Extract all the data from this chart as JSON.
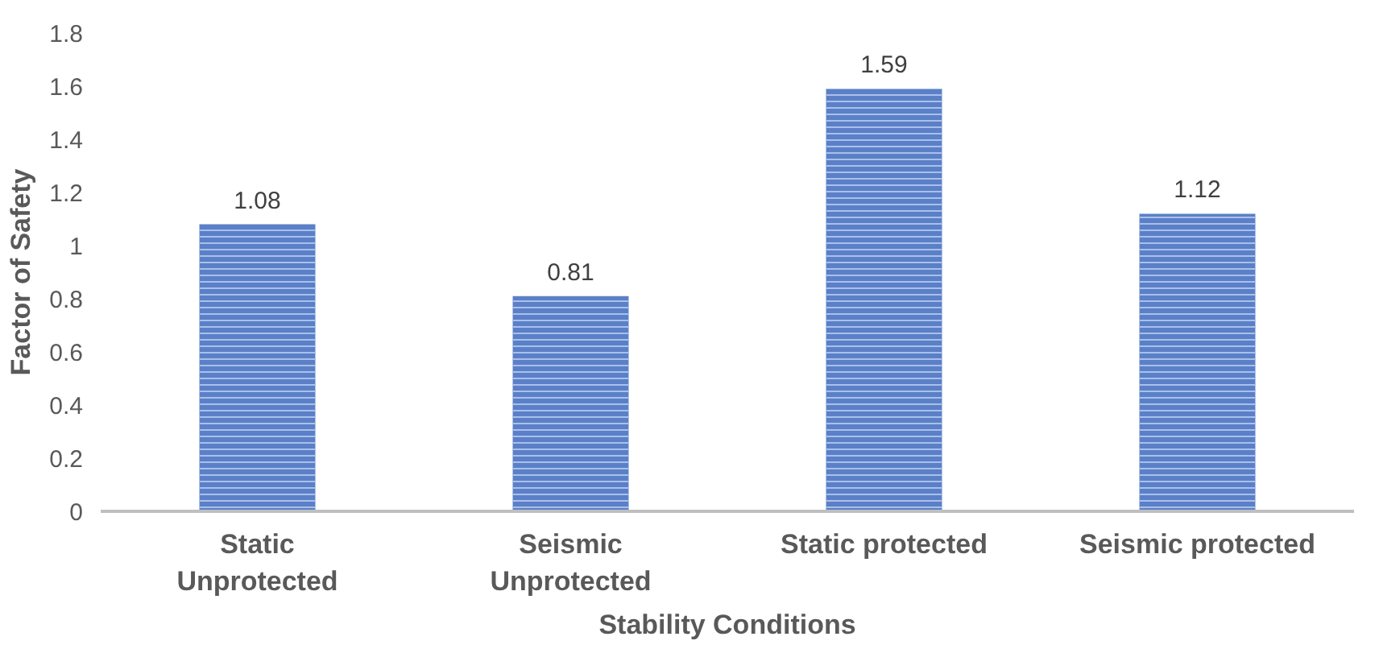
{
  "chart_data": {
    "type": "bar",
    "xlabel": "Stability Conditions",
    "ylabel": "Factor of Safety",
    "categories": [
      "Static Unprotected",
      "Seismic Unprotected",
      "Static protected",
      "Seismic protected"
    ],
    "values": [
      1.08,
      0.81,
      1.59,
      1.12
    ],
    "color": "#5b80c8",
    "ylim": [
      0,
      1.8
    ],
    "yticks": [
      0,
      {
        "value": 0.2,
        "label": "0.2"
      },
      {
        "value": 0.4,
        "label": "0.4"
      },
      {
        "value": 0.6,
        "label": "0.6"
      },
      {
        "value": 0.8,
        "label": "0.8"
      },
      1,
      {
        "value": 1.2,
        "label": "1.2"
      },
      {
        "value": 1.4,
        "label": "1.4"
      },
      {
        "value": 1.6,
        "label": "1.6"
      },
      {
        "value": 1.8,
        "label": "1.8"
      }
    ],
    "data_labels": true,
    "grid": false
  }
}
